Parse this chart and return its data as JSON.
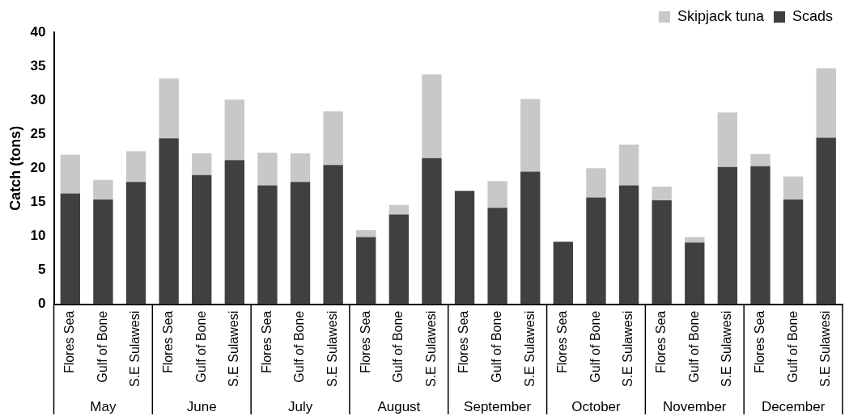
{
  "chart_data": {
    "type": "bar",
    "stacked": true,
    "ylabel": "Catch (tons)",
    "categories": [
      "Flores Sea",
      "Gulf of Bone",
      "S.E Sulawesi",
      "Flores Sea",
      "Gulf of Bone",
      "S.E Sulawesi",
      "Flores Sea",
      "Gulf of Bone",
      "S.E Sulawesi",
      "Flores Sea",
      "Gulf of Bone",
      "S.E Sulawesi",
      "Flores Sea",
      "Gulf of Bone",
      "S.E Sulawesi",
      "Flores Sea",
      "Gulf of Bone",
      "S.E Sulawesi",
      "Flores Sea",
      "Gulf of Bone",
      "S.E Sulawesi",
      "Flores Sea",
      "Gulf of Bone",
      "S.E Sulawesi"
    ],
    "series": [
      {
        "name": "Scads",
        "color": "#404040",
        "values": [
          16.3,
          15.4,
          18,
          24.4,
          19,
          21.2,
          17.5,
          18,
          20.5,
          9.9,
          13.2,
          21.5,
          16.7,
          14.2,
          19.5,
          9.2,
          15.7,
          17.5,
          15.3,
          9.1,
          20.2,
          20.3,
          15.4,
          24.5
        ]
      },
      {
        "name": "Skipjack tuna",
        "color": "#c8c8c8",
        "values": [
          5.7,
          2.9,
          4.5,
          8.8,
          3.2,
          8.9,
          4.8,
          4.2,
          7.9,
          1,
          1.4,
          12.3,
          null,
          3.9,
          10.7,
          0,
          4.3,
          6,
          2,
          0.8,
          8,
          1.8,
          3.4,
          10.2
        ]
      }
    ],
    "annotations": [
      "May",
      "June",
      "July",
      "August",
      "September",
      "October",
      "November",
      "December"
    ],
    "ylim": [
      0,
      40
    ],
    "yticks": [
      0,
      5,
      10,
      15,
      20,
      25,
      30,
      35,
      40
    ],
    "grid": false,
    "legend": "top right"
  }
}
